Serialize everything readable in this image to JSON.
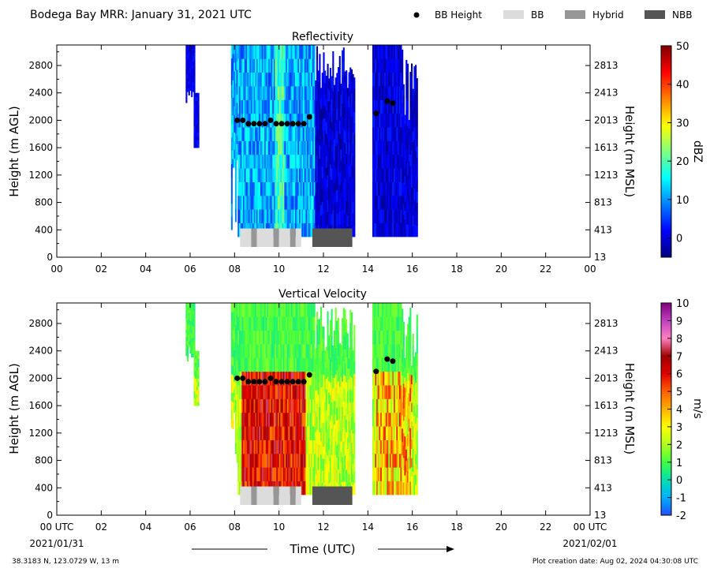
{
  "title": "Bodega Bay MRR:  January 31, 2021 UTC",
  "legend": [
    {
      "label": "BB Height",
      "kind": "dot",
      "color": "#000000"
    },
    {
      "label": "BB",
      "kind": "swatch",
      "color": "#dcdcdc"
    },
    {
      "label": "Hybrid",
      "kind": "swatch",
      "color": "#969696"
    },
    {
      "label": "NBB",
      "kind": "swatch",
      "color": "#555555"
    }
  ],
  "footer": {
    "location": "38.3183 N, 123.0729 W, 13 m",
    "creation": "Plot creation date: Aug 02, 2024 04:30:08 UTC",
    "xlabel": "Time (UTC)",
    "date_start": "2021/01/31",
    "date_end": "2021/02/01"
  },
  "chart_data": [
    {
      "type": "heatmap",
      "title": "Reflectivity",
      "ylabel": "Height (m AGL)",
      "ylabel_right": "Height (m MSL)",
      "xlim": [
        0,
        24
      ],
      "ylim": [
        0,
        3100
      ],
      "x_ticks": [
        "00",
        "02",
        "04",
        "06",
        "08",
        "10",
        "12",
        "14",
        "16",
        "18",
        "20",
        "22",
        "00"
      ],
      "y_ticks": [
        0,
        400,
        800,
        1200,
        1600,
        2000,
        2400,
        2800
      ],
      "y_ticks_right": [
        13,
        413,
        813,
        1213,
        1613,
        2013,
        2413,
        2813
      ],
      "colorbar": {
        "label": "dBZ",
        "range": [
          -5,
          50
        ],
        "ticks": [
          0,
          10,
          20,
          30,
          40,
          50
        ],
        "colors": [
          "#00007f",
          "#0000ff",
          "#007fff",
          "#00ffff",
          "#7fff7f",
          "#ffff00",
          "#ff7f00",
          "#ff0000",
          "#7f0000"
        ]
      },
      "bb_height": [
        {
          "x": 8.12,
          "y": 2000
        },
        {
          "x": 8.37,
          "y": 2000
        },
        {
          "x": 8.62,
          "y": 1950
        },
        {
          "x": 8.87,
          "y": 1950
        },
        {
          "x": 9.12,
          "y": 1950
        },
        {
          "x": 9.37,
          "y": 1950
        },
        {
          "x": 9.62,
          "y": 2000
        },
        {
          "x": 9.87,
          "y": 1950
        },
        {
          "x": 10.12,
          "y": 1950
        },
        {
          "x": 10.37,
          "y": 1950
        },
        {
          "x": 10.62,
          "y": 1950
        },
        {
          "x": 10.87,
          "y": 1950
        },
        {
          "x": 11.12,
          "y": 1950
        },
        {
          "x": 11.37,
          "y": 2050
        },
        {
          "x": 14.37,
          "y": 2100
        },
        {
          "x": 14.87,
          "y": 2280
        },
        {
          "x": 15.12,
          "y": 2250
        }
      ],
      "bb_type_bar": [
        {
          "start": 8.25,
          "end": 8.75,
          "class": "BB"
        },
        {
          "start": 8.75,
          "end": 9.0,
          "class": "Hybrid"
        },
        {
          "start": 9.0,
          "end": 9.75,
          "class": "BB"
        },
        {
          "start": 9.75,
          "end": 10.0,
          "class": "Hybrid"
        },
        {
          "start": 10.0,
          "end": 10.5,
          "class": "BB"
        },
        {
          "start": 10.5,
          "end": 10.75,
          "class": "Hybrid"
        },
        {
          "start": 10.75,
          "end": 11.0,
          "class": "BB"
        },
        {
          "start": 11.5,
          "end": 13.3,
          "class": "NBB"
        }
      ]
    },
    {
      "type": "heatmap",
      "title": "Vertical Velocity",
      "ylabel": "Height (m AGL)",
      "ylabel_right": "Height (m MSL)",
      "xlim": [
        0,
        24
      ],
      "ylim": [
        0,
        3100
      ],
      "x_ticks": [
        "00 UTC",
        "02",
        "04",
        "06",
        "08",
        "10",
        "12",
        "14",
        "16",
        "18",
        "20",
        "22",
        "00 UTC"
      ],
      "y_ticks": [
        0,
        400,
        800,
        1200,
        1600,
        2000,
        2400,
        2800
      ],
      "y_ticks_right": [
        13,
        413,
        813,
        1213,
        1613,
        2013,
        2413,
        2813
      ],
      "colorbar": {
        "label": "m/s",
        "range": [
          -2,
          10
        ],
        "ticks": [
          -2,
          -1,
          0,
          1,
          2,
          3,
          4,
          5,
          6,
          7,
          8,
          9,
          10
        ],
        "colors": [
          "#1f4fff",
          "#00b0ff",
          "#00e0b0",
          "#40ff40",
          "#b0ff20",
          "#ffff00",
          "#ffb000",
          "#ff6000",
          "#e00000",
          "#a00000",
          "#ff80c0",
          "#c040c0",
          "#800080"
        ]
      },
      "bb_height": [
        {
          "x": 8.12,
          "y": 2000
        },
        {
          "x": 8.37,
          "y": 2000
        },
        {
          "x": 8.62,
          "y": 1950
        },
        {
          "x": 8.87,
          "y": 1950
        },
        {
          "x": 9.12,
          "y": 1950
        },
        {
          "x": 9.37,
          "y": 1950
        },
        {
          "x": 9.62,
          "y": 2000
        },
        {
          "x": 9.87,
          "y": 1950
        },
        {
          "x": 10.12,
          "y": 1950
        },
        {
          "x": 10.37,
          "y": 1950
        },
        {
          "x": 10.62,
          "y": 1950
        },
        {
          "x": 10.87,
          "y": 1950
        },
        {
          "x": 11.12,
          "y": 1950
        },
        {
          "x": 11.37,
          "y": 2050
        },
        {
          "x": 14.37,
          "y": 2100
        },
        {
          "x": 14.87,
          "y": 2280
        },
        {
          "x": 15.12,
          "y": 2250
        }
      ],
      "bb_type_bar": [
        {
          "start": 8.25,
          "end": 8.75,
          "class": "BB"
        },
        {
          "start": 8.75,
          "end": 9.0,
          "class": "Hybrid"
        },
        {
          "start": 9.0,
          "end": 9.75,
          "class": "BB"
        },
        {
          "start": 9.75,
          "end": 10.0,
          "class": "Hybrid"
        },
        {
          "start": 10.0,
          "end": 10.5,
          "class": "BB"
        },
        {
          "start": 10.5,
          "end": 10.75,
          "class": "Hybrid"
        },
        {
          "start": 10.75,
          "end": 11.0,
          "class": "BB"
        },
        {
          "start": 11.5,
          "end": 13.3,
          "class": "NBB"
        }
      ]
    }
  ]
}
